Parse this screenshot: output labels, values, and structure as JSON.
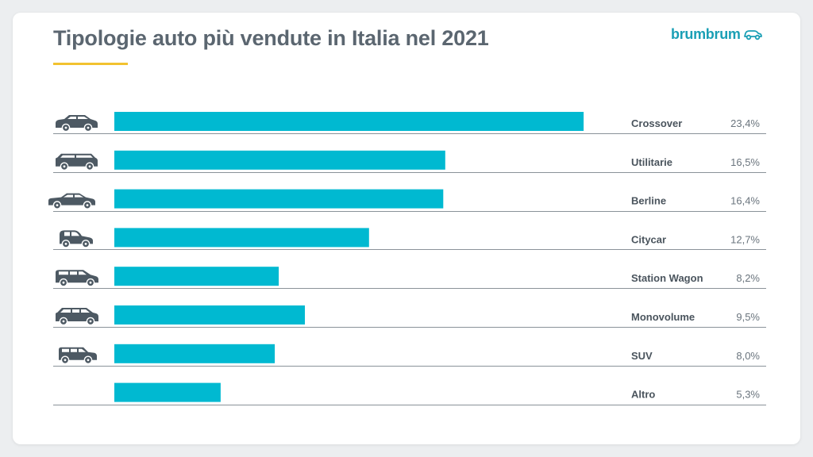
{
  "header": {
    "title": "Tipologie auto più vendute in Italia nel 2021",
    "brand": "brumbrum"
  },
  "colors": {
    "bar": "#00b9d1",
    "title": "#5b6670",
    "accent_underline": "#f2c230",
    "brand": "#1a9fb5",
    "icon": "#4d5963",
    "row_line": "#8a9299"
  },
  "chart_data": {
    "type": "bar",
    "orientation": "horizontal",
    "title": "Tipologie auto più vendute in Italia nel 2021",
    "xlabel": "",
    "ylabel": "",
    "grid": false,
    "categories": [
      "Crossover",
      "Utilitarie",
      "Berline",
      "Citycar",
      "Station Wagon",
      "Monovolume",
      "SUV",
      "Altro"
    ],
    "values": [
      23.4,
      16.5,
      16.4,
      12.7,
      8.2,
      9.5,
      8.0,
      5.3
    ],
    "value_labels": [
      "23,4%",
      "16,5%",
      "16,4%",
      "12,7%",
      "8,2%",
      "9,5%",
      "8,0%",
      "5,3%"
    ],
    "icons": [
      "crossover-icon",
      "hatchback-icon",
      "sedan-icon",
      "citycar-icon",
      "station-wagon-icon",
      "minivan-icon",
      "suv-icon",
      ""
    ]
  }
}
